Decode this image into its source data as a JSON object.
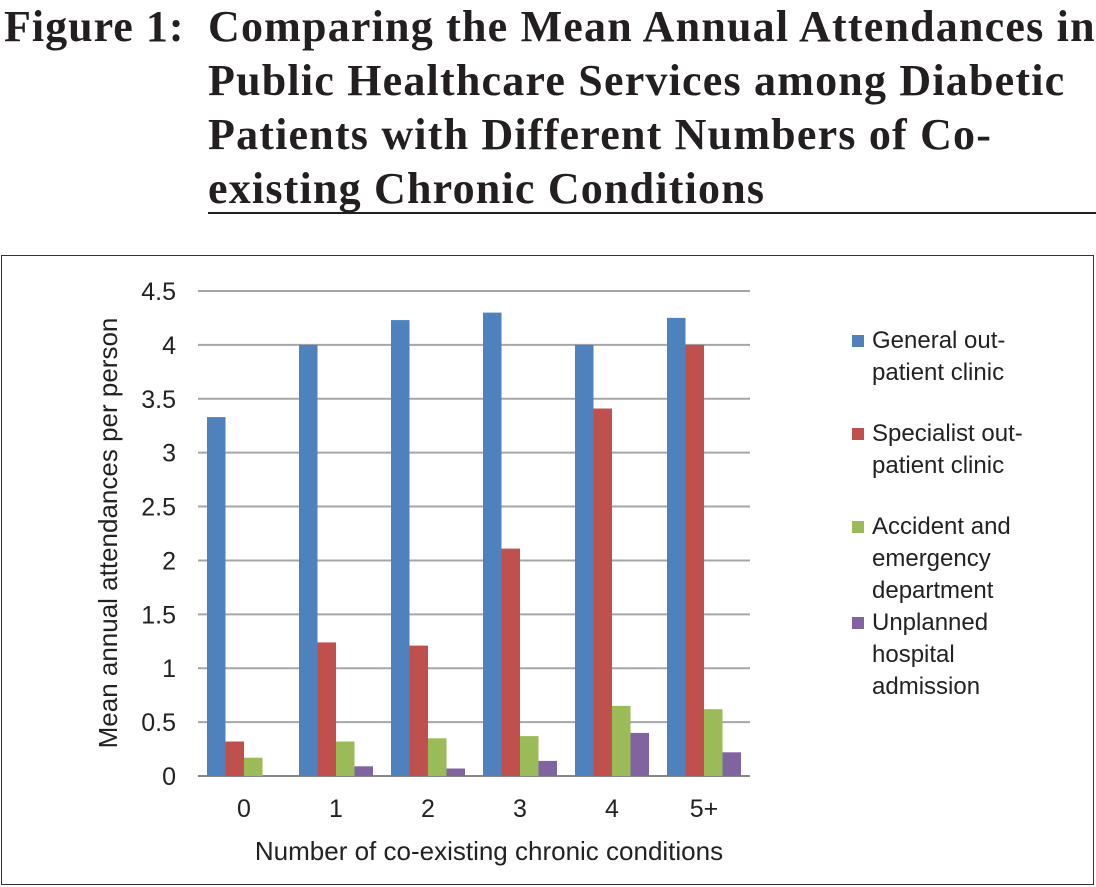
{
  "figure": {
    "label": "Figure 1:",
    "title": "Comparing the Mean Annual Attendances in Public Healthcare Services among Diabetic Patients with Different Numbers of Co-existing Chronic Conditions"
  },
  "chart_data": {
    "type": "bar",
    "title": "",
    "xlabel": "Number of co-existing chronic conditions",
    "ylabel": "Mean annual attendances per person",
    "categories": [
      "0",
      "1",
      "2",
      "3",
      "4",
      "5+"
    ],
    "ylim": [
      0,
      4.5
    ],
    "yticks": [
      "0",
      "0.5",
      "1",
      "1.5",
      "2",
      "2.5",
      "3",
      "3.5",
      "4",
      "4.5"
    ],
    "grid": true,
    "legend_position": "right",
    "series": [
      {
        "name": "General out-patient clinic",
        "color": "#4f81bd",
        "values": [
          3.33,
          4.0,
          4.23,
          4.3,
          4.0,
          4.25
        ]
      },
      {
        "name": "Specialist out-patient clinic",
        "color": "#c0504d",
        "values": [
          0.32,
          1.24,
          1.21,
          2.11,
          3.41,
          4.0
        ]
      },
      {
        "name": "Accident and emergency department",
        "color": "#9bbb59",
        "values": [
          0.17,
          0.32,
          0.35,
          0.37,
          0.65,
          0.62
        ]
      },
      {
        "name": "Unplanned hospital admission",
        "color": "#8064a2",
        "values": [
          0.0,
          0.09,
          0.07,
          0.14,
          0.4,
          0.22
        ]
      }
    ]
  }
}
